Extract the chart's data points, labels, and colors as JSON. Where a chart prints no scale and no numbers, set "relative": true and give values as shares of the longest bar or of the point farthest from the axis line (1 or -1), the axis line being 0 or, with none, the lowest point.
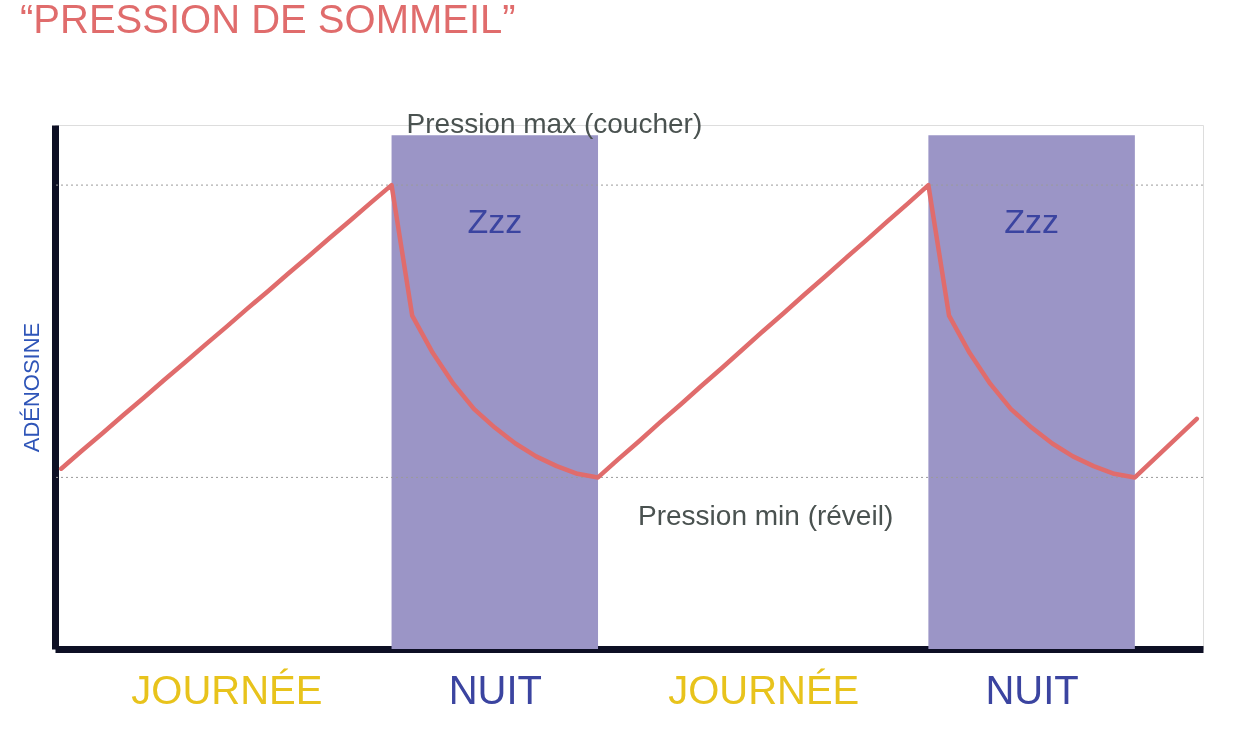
{
  "chart_data": {
    "type": "line",
    "title": "“PRESSION DE SOMMEIL”",
    "ylabel": "ADÉNOSINE",
    "relative": true,
    "tick_labels": "x",
    "marker": "none",
    "line_style": "solid",
    "categories": [
      null,
      null,
      null,
      null,
      null,
      null,
      null,
      null,
      "JOURNÉE",
      null,
      null,
      null,
      null,
      null,
      null,
      null,
      null,
      null,
      null,
      null,
      null,
      "NUIT",
      null,
      null,
      null,
      null,
      null,
      null,
      null,
      null,
      null,
      null,
      null,
      null,
      "JOURNÉE",
      null,
      null,
      null,
      null,
      null,
      null,
      null,
      null,
      null,
      null,
      null,
      null,
      "NUIT",
      null,
      null,
      null,
      null,
      null,
      null,
      null,
      null
    ],
    "series": [
      {
        "type": "area",
        "color": "#9b95c6",
        "values": [
          null,
          null,
          null,
          null,
          null,
          null,
          null,
          null,
          null,
          null,
          null,
          null,
          null,
          null,
          null,
          null,
          1,
          1,
          1,
          1,
          1,
          1,
          1,
          1,
          1,
          1,
          1,
          null,
          null,
          null,
          null,
          null,
          null,
          null,
          null,
          null,
          null,
          null,
          null,
          null,
          null,
          null,
          1,
          1,
          1,
          1,
          1,
          1,
          1,
          1,
          1,
          1,
          1,
          null,
          null,
          null
        ]
      },
      {
        "color": "#e06c6c",
        "values": [
          0.351,
          0.386,
          0.42,
          0.455,
          0.489,
          0.524,
          0.558,
          0.593,
          0.627,
          0.662,
          0.696,
          0.731,
          0.765,
          0.8,
          0.834,
          0.869,
          0.903,
          0.649,
          0.576,
          0.516,
          0.467,
          0.431,
          0.4,
          0.375,
          0.356,
          0.341,
          0.334,
          0.37,
          0.405,
          0.441,
          0.476,
          0.512,
          0.547,
          0.583,
          0.619,
          0.654,
          0.69,
          0.725,
          0.761,
          0.796,
          0.832,
          0.867,
          0.903,
          0.649,
          0.576,
          0.516,
          0.467,
          0.431,
          0.4,
          0.375,
          0.356,
          0.341,
          0.334,
          0.372,
          0.41,
          0.448
        ]
      }
    ],
    "ref_lines": [
      {
        "axis": "y",
        "value": 0.903,
        "color": "#9a9a9a",
        "line_style": "dotted",
        "label": "Pression max (coucher)"
      },
      {
        "axis": "y",
        "value": 0.334,
        "color": "#9a9a9a",
        "line_style": "dotted",
        "label": "Pression min (réveil)"
      }
    ],
    "annotations": [
      "Zzz",
      "Zzz"
    ]
  }
}
